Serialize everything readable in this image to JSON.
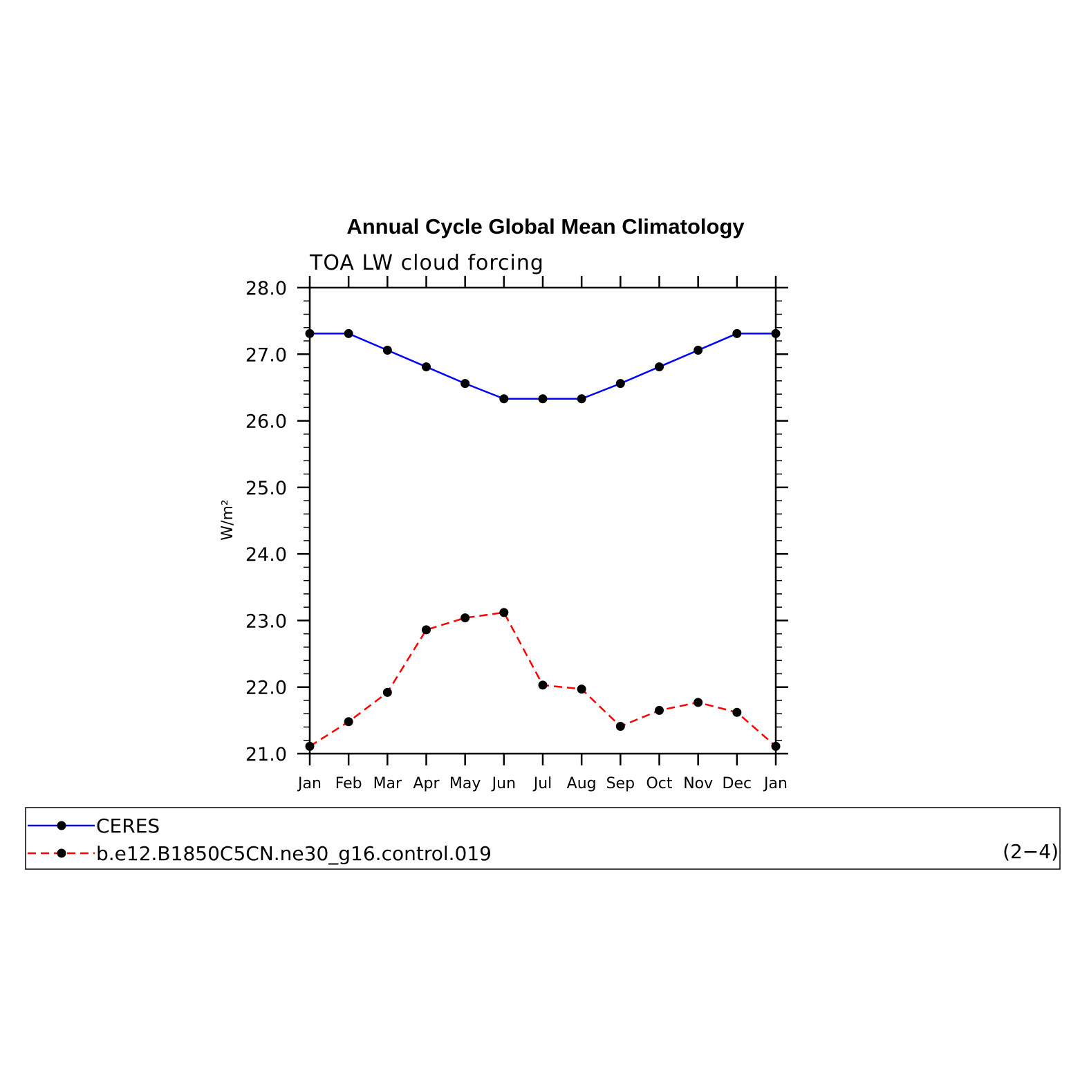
{
  "chart_data": {
    "type": "line",
    "title": "Annual Cycle Global Mean Climatology",
    "subtitle": "TOA LW cloud forcing",
    "ylabel": "W/m²",
    "ylim": [
      21.0,
      28.0
    ],
    "yticks": [
      "21.0",
      "22.0",
      "23.0",
      "24.0",
      "25.0",
      "26.0",
      "27.0",
      "28.0"
    ],
    "categories": [
      "Jan",
      "Feb",
      "Mar",
      "Apr",
      "May",
      "Jun",
      "Jul",
      "Aug",
      "Sep",
      "Oct",
      "Nov",
      "Dec",
      "Jan"
    ],
    "grid": false,
    "legend_placement": "bottom",
    "series": [
      {
        "name": "CERES",
        "color": "#0000ff",
        "dash": "solid",
        "values": [
          27.31,
          27.31,
          27.06,
          26.81,
          26.56,
          26.33,
          26.33,
          26.33,
          26.56,
          26.81,
          27.06,
          27.31,
          27.31
        ]
      },
      {
        "name": "b.e12.B1850C5CN.ne30_g16.control.019",
        "color": "#ff0000",
        "dash": "dashed",
        "values": [
          21.11,
          21.48,
          21.92,
          22.86,
          23.04,
          23.12,
          22.03,
          21.97,
          21.41,
          21.65,
          21.77,
          21.62,
          21.11
        ]
      }
    ]
  },
  "panel_label": "(2−4)"
}
